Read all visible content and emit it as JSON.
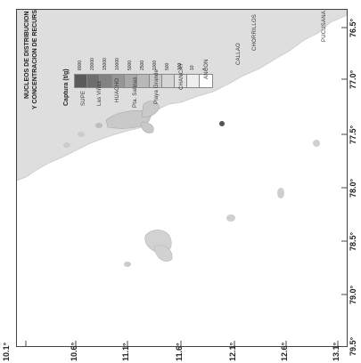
{
  "map": {
    "title_line1": "NUCLEOS DE DISTRIBUCION",
    "title_line2": "Y CONCENTRACION DE RECURSOS",
    "legend_title": "Captura (t/g)",
    "legend_scale": [
      "8000",
      "20000",
      "15000",
      "10000",
      "5000",
      "2500",
      "1000",
      "500",
      "100",
      "10",
      "1"
    ],
    "legend_colors": [
      "#5a5a5a",
      "#6e6e6e",
      "#828282",
      "#969696",
      "#a8a8a8",
      "#b8b8b8",
      "#c8c8c8",
      "#d6d6d6",
      "#e2e2e2",
      "#eeeeee",
      "#ffffff"
    ],
    "land_color": "#dedede",
    "places": [
      "PUCUSANA",
      "CHORRILLOS",
      "CALLAO",
      "ANCON",
      "CHANCAY",
      "Playa Grande",
      "Pta. Salinas",
      "HUACHO",
      "Las Viñas",
      "SUPE"
    ],
    "lon_ticks": [
      "76.5°",
      "77.0°",
      "77.5°",
      "78.0°",
      "78.5°",
      "79.0°",
      "79.5°"
    ],
    "lat_ticks": [
      "10.1°",
      "10.6°",
      "11.1°",
      "11.6°",
      "12.1°",
      "12.6°",
      "13.1°"
    ]
  }
}
